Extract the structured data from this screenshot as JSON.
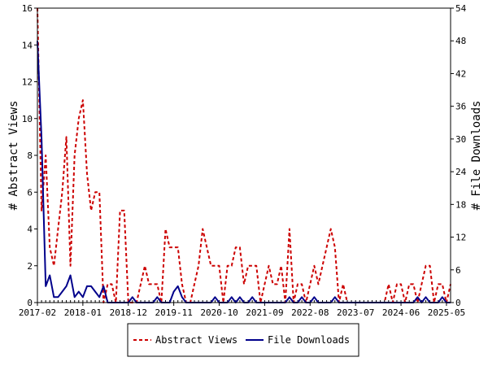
{
  "chart_data": {
    "type": "line",
    "title": "",
    "ylabel": "# Abstract Views",
    "y2label": "# File Downloads",
    "ylim": [
      0,
      16
    ],
    "y2lim": [
      0,
      54
    ],
    "yticks": [
      "0",
      "2",
      "4",
      "6",
      "8",
      "10",
      "12",
      "14",
      "16"
    ],
    "y2ticks": [
      "0",
      "6",
      "12",
      "18",
      "24",
      "30",
      "36",
      "42",
      "48",
      "54"
    ],
    "xticks": [
      "2017-02",
      "2018-01",
      "2018-12",
      "2019-11",
      "2020-10",
      "2021-09",
      "2022-08",
      "2023-07",
      "2024-06",
      "2025-05"
    ],
    "legend_position": "bottom",
    "grid": false,
    "x": [
      "2017-02",
      "2017-03",
      "2017-04",
      "2017-05",
      "2017-06",
      "2017-07",
      "2017-08",
      "2017-09",
      "2017-10",
      "2017-11",
      "2017-12",
      "2018-01",
      "2018-02",
      "2018-03",
      "2018-04",
      "2018-05",
      "2018-06",
      "2018-07",
      "2018-08",
      "2018-09",
      "2018-10",
      "2018-11",
      "2018-12",
      "2019-01",
      "2019-02",
      "2019-03",
      "2019-04",
      "2019-05",
      "2019-06",
      "2019-07",
      "2019-08",
      "2019-09",
      "2019-10",
      "2019-11",
      "2019-12",
      "2020-01",
      "2020-02",
      "2020-03",
      "2020-04",
      "2020-05",
      "2020-06",
      "2020-07",
      "2020-08",
      "2020-09",
      "2020-10",
      "2020-11",
      "2020-12",
      "2021-01",
      "2021-02",
      "2021-03",
      "2021-04",
      "2021-05",
      "2021-06",
      "2021-07",
      "2021-08",
      "2021-09",
      "2021-10",
      "2021-11",
      "2021-12",
      "2022-01",
      "2022-02",
      "2022-03",
      "2022-04",
      "2022-05",
      "2022-06",
      "2022-07",
      "2022-08",
      "2022-09",
      "2022-10",
      "2022-11",
      "2022-12",
      "2023-01",
      "2023-02",
      "2023-03",
      "2023-04",
      "2023-05",
      "2023-06",
      "2023-07",
      "2023-08",
      "2023-09",
      "2023-10",
      "2023-11",
      "2023-12",
      "2024-01",
      "2024-02",
      "2024-03",
      "2024-04",
      "2024-05",
      "2024-06",
      "2024-07",
      "2024-08",
      "2024-09",
      "2024-10",
      "2024-11",
      "2024-12",
      "2025-01",
      "2025-02",
      "2025-03",
      "2025-04",
      "2025-05",
      "2025-06"
    ],
    "series": [
      {
        "name": "Abstract Views",
        "color": "#cc0000",
        "dash": "dashed",
        "axis": "left",
        "values": [
          16,
          5,
          8,
          3,
          2,
          4,
          6,
          9,
          2,
          8,
          10,
          11,
          7,
          5,
          6,
          6,
          0,
          1,
          1,
          0,
          5,
          5,
          0,
          0,
          0,
          1,
          2,
          1,
          1,
          1,
          0,
          4,
          3,
          3,
          3,
          1,
          0,
          0,
          1,
          2,
          4,
          3,
          2,
          2,
          2,
          0,
          2,
          2,
          3,
          3,
          1,
          2,
          2,
          2,
          0,
          1,
          2,
          1,
          1,
          2,
          0,
          4,
          0,
          1,
          1,
          0,
          1,
          2,
          1,
          2,
          3,
          4,
          3,
          0,
          1,
          0,
          0,
          0,
          0,
          0,
          0,
          0,
          0,
          0,
          0,
          1,
          0,
          1,
          1,
          0,
          1,
          1,
          0,
          1,
          2,
          2,
          0,
          1,
          1,
          0,
          1
        ]
      },
      {
        "name": "File Downloads",
        "color": "#00008b",
        "dash": "solid",
        "axis": "right",
        "values": [
          48,
          30,
          3,
          5,
          1,
          1,
          2,
          3,
          5,
          1,
          2,
          1,
          3,
          3,
          2,
          1,
          3,
          0,
          0,
          0,
          0,
          0,
          0,
          1,
          0,
          0,
          0,
          0,
          0,
          1,
          0,
          0,
          0,
          2,
          3,
          1,
          0,
          0,
          0,
          0,
          0,
          0,
          0,
          1,
          0,
          0,
          0,
          1,
          0,
          1,
          0,
          0,
          1,
          0,
          0,
          0,
          0,
          0,
          0,
          0,
          0,
          1,
          0,
          0,
          1,
          0,
          0,
          1,
          0,
          0,
          0,
          0,
          1,
          0,
          0,
          0,
          0,
          0,
          0,
          0,
          0,
          0,
          0,
          0,
          0,
          0,
          0,
          0,
          0,
          0,
          0,
          0,
          1,
          0,
          1,
          0,
          0,
          0,
          1,
          0,
          0
        ]
      }
    ]
  }
}
